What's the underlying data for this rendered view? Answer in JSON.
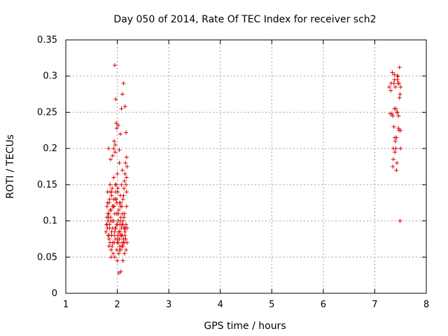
{
  "chart_data": {
    "type": "scatter",
    "title": "Day 050 of 2014, Rate Of TEC Index for receiver sch2",
    "xlabel": "GPS time / hours",
    "ylabel": "ROTI / TECUs",
    "xlim": [
      1,
      8
    ],
    "ylim": [
      0,
      0.35
    ],
    "xticks": [
      1,
      2,
      3,
      4,
      5,
      6,
      7,
      8
    ],
    "xtick_labels": [
      "1",
      "2",
      "3",
      "4",
      "5",
      "6",
      "7",
      "8"
    ],
    "yticks": [
      0,
      0.05,
      0.1,
      0.15,
      0.2,
      0.25,
      0.3,
      0.35
    ],
    "ytick_labels": [
      "0",
      "0.05",
      "0.1",
      "0.15",
      "0.2",
      "0.25",
      "0.3",
      "0.35"
    ],
    "grid": true,
    "marker": "plus",
    "color": "#dd0000",
    "series": [
      {
        "name": "ROTI",
        "x": [
          1.78,
          1.79,
          1.8,
          1.8,
          1.81,
          1.81,
          1.82,
          1.82,
          1.83,
          1.83,
          1.84,
          1.84,
          1.85,
          1.85,
          1.86,
          1.86,
          1.87,
          1.87,
          1.88,
          1.88,
          1.89,
          1.89,
          1.9,
          1.9,
          1.91,
          1.91,
          1.92,
          1.92,
          1.93,
          1.93,
          1.94,
          1.94,
          1.95,
          1.95,
          1.96,
          1.96,
          1.97,
          1.97,
          1.98,
          1.98,
          1.99,
          1.99,
          2.0,
          2.0,
          2.01,
          2.01,
          2.02,
          2.02,
          2.03,
          2.03,
          2.04,
          2.04,
          2.05,
          2.05,
          2.06,
          2.06,
          2.07,
          2.07,
          2.08,
          2.08,
          2.09,
          2.09,
          2.1,
          2.1,
          2.11,
          2.11,
          2.12,
          2.12,
          2.13,
          2.13,
          2.14,
          2.14,
          2.15,
          2.15,
          2.16,
          2.16,
          2.17,
          2.17,
          2.18,
          2.18,
          2.19,
          2.19,
          1.8,
          1.82,
          1.84,
          1.86,
          1.88,
          1.9,
          1.92,
          1.94,
          1.96,
          1.98,
          2.0,
          2.02,
          2.04,
          2.06,
          2.08,
          2.1,
          2.12,
          2.14,
          2.16,
          2.18,
          1.83,
          1.85,
          1.87,
          1.89,
          1.91,
          1.93,
          1.95,
          1.97,
          1.99,
          2.01,
          2.03,
          2.05,
          2.07,
          2.09,
          2.11,
          2.13,
          2.15,
          1.81,
          1.86,
          1.91,
          1.96,
          2.01,
          2.06,
          2.11,
          2.16,
          1.84,
          1.89,
          1.94,
          1.99,
          2.04,
          2.09,
          2.14,
          2.19,
          1.95,
          1.97,
          1.99,
          2.02,
          2.04,
          2.06,
          2.08,
          2.1,
          2.12,
          2.15,
          2.17,
          2.18,
          1.93,
          1.96,
          2.0,
          2.03,
          2.07,
          2.11,
          2.14,
          2.17,
          7.28,
          7.3,
          7.32,
          7.34,
          7.35,
          7.36,
          7.37,
          7.38,
          7.39,
          7.4,
          7.41,
          7.42,
          7.43,
          7.44,
          7.45,
          7.46,
          7.47,
          7.48,
          7.49,
          7.5,
          7.31,
          7.33,
          7.36,
          7.38,
          7.4,
          7.42,
          7.44,
          7.46,
          7.48,
          7.5,
          7.35,
          7.39,
          7.43,
          7.47,
          7.37,
          7.41,
          7.45,
          7.49,
          7.38,
          7.44,
          7.5
        ],
        "y": [
          0.085,
          0.095,
          0.105,
          0.12,
          0.09,
          0.14,
          0.1,
          0.08,
          0.11,
          0.2,
          0.075,
          0.125,
          0.095,
          0.13,
          0.07,
          0.15,
          0.105,
          0.185,
          0.06,
          0.115,
          0.135,
          0.085,
          0.065,
          0.145,
          0.19,
          0.09,
          0.055,
          0.12,
          0.1,
          0.16,
          0.07,
          0.21,
          0.05,
          0.11,
          0.13,
          0.195,
          0.09,
          0.075,
          0.15,
          0.235,
          0.06,
          0.125,
          0.095,
          0.165,
          0.08,
          0.14,
          0.07,
          0.11,
          0.085,
          0.055,
          0.125,
          0.075,
          0.095,
          0.065,
          0.135,
          0.08,
          0.105,
          0.06,
          0.15,
          0.09,
          0.07,
          0.12,
          0.08,
          0.17,
          0.065,
          0.1,
          0.075,
          0.135,
          0.09,
          0.145,
          0.07,
          0.11,
          0.085,
          0.165,
          0.18,
          0.075,
          0.15,
          0.095,
          0.12,
          0.16,
          0.07,
          0.09,
          0.095,
          0.11,
          0.065,
          0.14,
          0.05,
          0.1,
          0.12,
          0.08,
          0.09,
          0.13,
          0.07,
          0.1,
          0.06,
          0.12,
          0.08,
          0.11,
          0.07,
          0.09,
          0.075,
          0.14,
          0.105,
          0.09,
          0.1,
          0.08,
          0.12,
          0.13,
          0.085,
          0.14,
          0.095,
          0.075,
          0.115,
          0.085,
          0.125,
          0.065,
          0.095,
          0.105,
          0.08,
          0.125,
          0.115,
          0.07,
          0.15,
          0.145,
          0.1,
          0.13,
          0.09,
          0.08,
          0.14,
          0.12,
          0.11,
          0.18,
          0.095,
          0.155,
          0.175,
          0.315,
          0.268,
          0.228,
          0.232,
          0.198,
          0.22,
          0.255,
          0.275,
          0.29,
          0.258,
          0.222,
          0.188,
          0.2,
          0.205,
          0.045,
          0.028,
          0.03,
          0.045,
          0.055,
          0.06,
          0.285,
          0.248,
          0.29,
          0.305,
          0.175,
          0.2,
          0.29,
          0.302,
          0.215,
          0.285,
          0.255,
          0.215,
          0.18,
          0.25,
          0.3,
          0.245,
          0.29,
          0.312,
          0.1,
          0.2,
          0.28,
          0.248,
          0.185,
          0.295,
          0.21,
          0.17,
          0.295,
          0.228,
          0.27,
          0.285,
          0.245,
          0.195,
          0.25,
          0.225,
          0.23,
          0.2,
          0.29,
          0.275,
          0.255,
          0.3,
          0.225
        ]
      }
    ]
  }
}
